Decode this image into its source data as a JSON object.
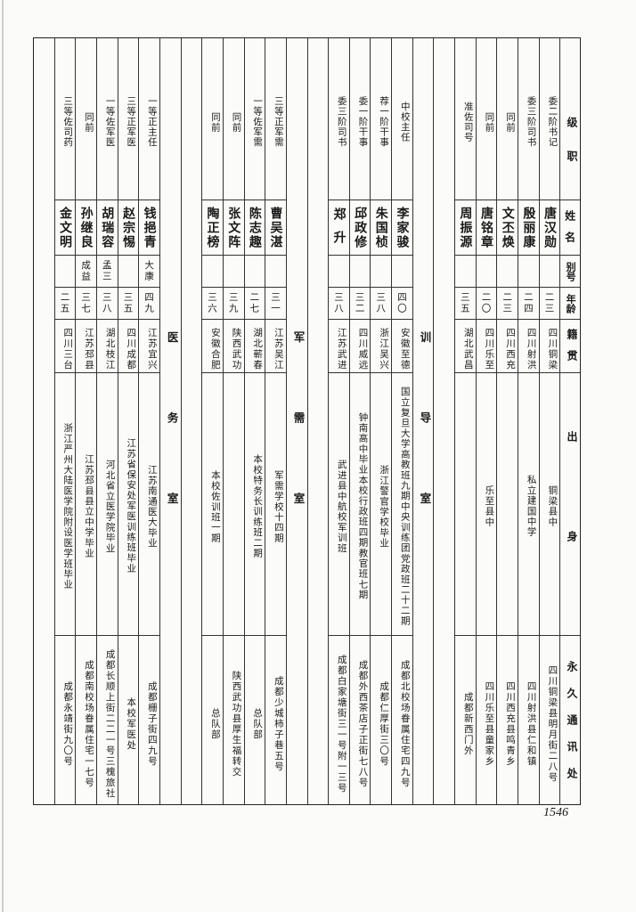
{
  "header": {
    "grade": "级职",
    "name": "姓名",
    "alias": "别号",
    "age": "年龄",
    "native": "籍贯",
    "background": "出身",
    "address": "永久通讯处"
  },
  "sections": [
    {
      "label": "",
      "rows": [
        {
          "grade": "委二阶书记",
          "name": "唐汉勋",
          "alias": "",
          "age": "二三",
          "native": "四川铜梁",
          "background": "铜梁县中",
          "address": "四川铜梁县明月街二八号"
        },
        {
          "grade": "委三阶司书",
          "name": "殷丽康",
          "alias": "",
          "age": "二四",
          "native": "四川射洪",
          "background": "私立建国中学",
          "address": "四川射洪县仁和镇"
        },
        {
          "grade": "同前",
          "name": "文丕焕",
          "alias": "",
          "age": "二三",
          "native": "四川西充",
          "background": "",
          "address": "四川西充县鸣青乡"
        },
        {
          "grade": "同前",
          "name": "唐铭章",
          "alias": "",
          "age": "二〇",
          "native": "四川乐至",
          "background": "乐至县中",
          "address": "四川乐至县童家乡"
        },
        {
          "grade": "准佐司号",
          "name": "周振源",
          "alias": "",
          "age": "三五",
          "native": "湖北武昌",
          "background": "",
          "address": "成都新西门外"
        }
      ]
    },
    {
      "label": "训导室",
      "rows": [
        {
          "grade": "中校主任",
          "name": "李家骏",
          "alias": "",
          "age": "四〇",
          "native": "安徽至德",
          "background": "国立复旦大学高教班九期中央训练团党政班二十二期",
          "address": "成都北校场眷属住宅四九号"
        },
        {
          "grade": "荐一阶干事",
          "name": "朱国桢",
          "alias": "",
          "age": "三八",
          "native": "浙江吴兴",
          "background": "浙江警官学校毕业",
          "address": "成都仁厚街三〇号"
        },
        {
          "grade": "委一阶干事",
          "name": "邱政修",
          "alias": "",
          "age": "三二",
          "native": "四川威远",
          "background": "钟南高中毕业本校行政班四期教官班七期",
          "address": "成都外西茶店子正街七八号"
        },
        {
          "grade": "委三阶司书",
          "name": "郑升",
          "alias": "",
          "age": "三八",
          "native": "江苏武进",
          "background": "武进县中航校军训班",
          "address": "成都白家塘街三一号附一三号"
        }
      ]
    },
    {
      "label": "军需室",
      "rows": [
        {
          "grade": "三等正军需",
          "name": "曹吴湛",
          "alias": "",
          "age": "三一",
          "native": "江苏吴江",
          "background": "军需学校十四期",
          "address": "成都少城柿子巷五号"
        },
        {
          "grade": "一等佐军需",
          "name": "陈志趣",
          "alias": "",
          "age": "二七",
          "native": "湖北蕲春",
          "background": "本校特务长训练班二期",
          "address": "总队部"
        },
        {
          "grade": "同前",
          "name": "张文阵",
          "alias": "",
          "age": "三九",
          "native": "陕西武功",
          "background": "",
          "address": "陕西武功县厚生福转交"
        },
        {
          "grade": "同前",
          "name": "陶正榜",
          "alias": "",
          "age": "三六",
          "native": "安徽合肥",
          "background": "本校佐训班一期",
          "address": "总队部"
        }
      ]
    },
    {
      "label": "医务室",
      "rows": [
        {
          "grade": "一等正主任",
          "name": "钱挹青",
          "alias": "大康",
          "age": "四九",
          "native": "江苏宜兴",
          "background": "江苏南通医大毕业",
          "address": "成都栅子街四九号"
        },
        {
          "grade": "三等正军医",
          "name": "赵宗惕",
          "alias": "",
          "age": "三五",
          "native": "四川成都",
          "background": "江苏省保安处军医训练班毕业",
          "address": "本校军医处"
        },
        {
          "grade": "一等佐军医",
          "name": "胡瑞容",
          "alias": "孟三",
          "age": "三八",
          "native": "湖北枝江",
          "background": "河北省立医学院毕业",
          "address": "成都长顺上街二二一号三槐旅社"
        },
        {
          "grade": "同前",
          "name": "孙继良",
          "alias": "成益",
          "age": "三七",
          "native": "江苏邳县",
          "background": "江苏邳县县立中学毕业",
          "address": "成都南校场眷属住宅一七号"
        },
        {
          "grade": "三等佐司药",
          "name": "金文明",
          "alias": "",
          "age": "二五",
          "native": "四川三台",
          "background": "浙江严州大陆医学院附设医学班毕业",
          "address": "成都永靖街九〇号"
        }
      ]
    }
  ],
  "page_number": "1546"
}
